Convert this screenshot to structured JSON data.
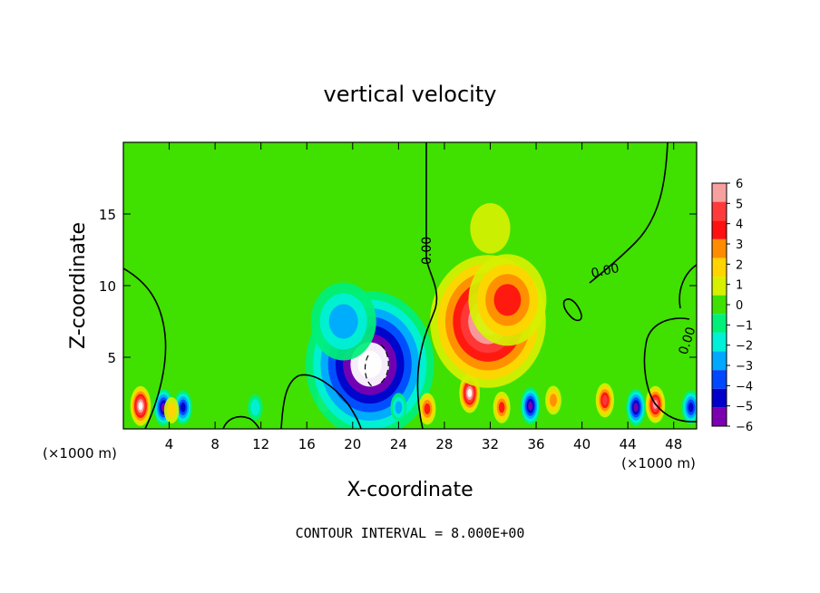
{
  "chart_data": {
    "type": "heatmap",
    "title": "vertical velocity",
    "xlabel": "X-coordinate",
    "ylabel": "Z-coordinate",
    "x_unit_left": "(×1000 m)",
    "x_unit_right": "(×1000 m)",
    "footer": "CONTOUR INTERVAL = 8.000E+00",
    "xlim": [
      0,
      50
    ],
    "ylim": [
      0,
      20
    ],
    "x_ticks": [
      4,
      8,
      12,
      16,
      20,
      24,
      28,
      32,
      36,
      40,
      44,
      48
    ],
    "y_ticks": [
      5,
      10,
      15
    ],
    "contour_labels": [
      "0.00",
      "0.00",
      "0.00"
    ],
    "colorbar": {
      "levels": [
        6,
        5,
        4,
        3,
        2,
        1,
        0,
        -1,
        -2,
        -3,
        -4,
        -5,
        -6
      ],
      "colors": [
        "#f7a0a0",
        "#ff3a3a",
        "#ff1010",
        "#ff8c00",
        "#ffd400",
        "#d6f000",
        "#40e000",
        "#00f07a",
        "#00f0d8",
        "#00a8ff",
        "#0048ff",
        "#0000c8",
        "#7a00b0"
      ]
    },
    "features": [
      {
        "x": 1.5,
        "z": 1.6,
        "w": 7
      },
      {
        "x": 3.5,
        "z": 1.5,
        "w": -6
      },
      {
        "x": 5.2,
        "z": 1.5,
        "w": -5
      },
      {
        "x": 4.2,
        "z": 1.3,
        "w": 2
      },
      {
        "x": 11.5,
        "z": 1.5,
        "w": -2
      },
      {
        "x": 17.5,
        "z": 2.0,
        "w": 1
      },
      {
        "x": 21.5,
        "z": 4.5,
        "w": -8
      },
      {
        "x": 19.2,
        "z": 7.5,
        "w": -3
      },
      {
        "x": 24.0,
        "z": 1.5,
        "w": -3
      },
      {
        "x": 26.5,
        "z": 1.4,
        "w": 4
      },
      {
        "x": 30.2,
        "z": 2.5,
        "w": 7
      },
      {
        "x": 31.8,
        "z": 7.5,
        "w": 7
      },
      {
        "x": 33.5,
        "z": 9.0,
        "w": 4
      },
      {
        "x": 32.0,
        "z": 14.0,
        "w": 1
      },
      {
        "x": 35.5,
        "z": 1.6,
        "w": -6
      },
      {
        "x": 33.0,
        "z": 1.5,
        "w": 4
      },
      {
        "x": 37.5,
        "z": 2.0,
        "w": 3
      },
      {
        "x": 42.0,
        "z": 2.0,
        "w": 5
      },
      {
        "x": 44.7,
        "z": 1.5,
        "w": -6
      },
      {
        "x": 46.4,
        "z": 1.7,
        "w": 6
      },
      {
        "x": 49.5,
        "z": 1.5,
        "w": -5
      }
    ]
  }
}
